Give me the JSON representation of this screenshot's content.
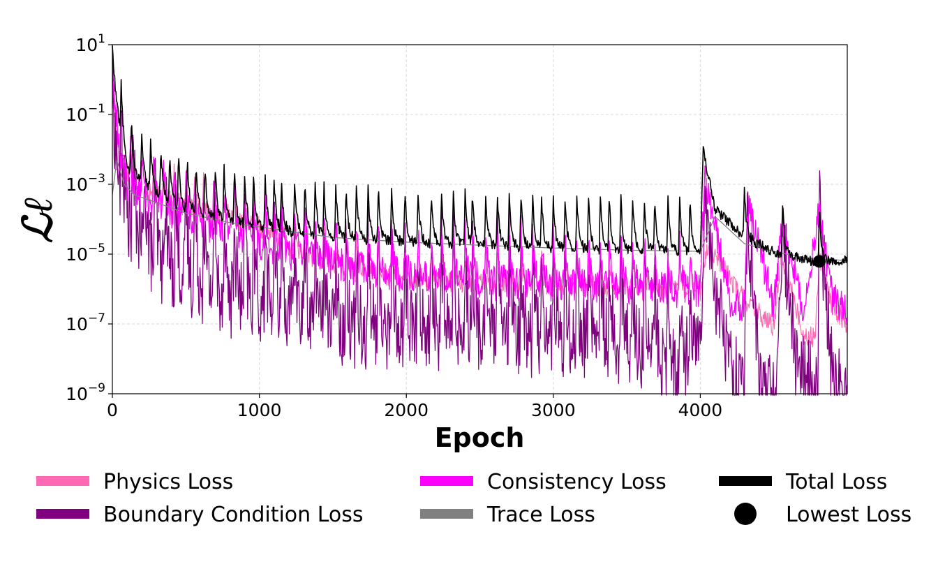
{
  "chart_data": {
    "type": "line",
    "xlabel": "Epoch",
    "ylabel": "ℒℓ",
    "yscale": "log",
    "xlim": [
      0,
      5000
    ],
    "ylim": [
      1e-09,
      10
    ],
    "grid": true,
    "x_ticks": [
      {
        "value": 0,
        "label": "0"
      },
      {
        "value": 1000,
        "label": "1000"
      },
      {
        "value": 2000,
        "label": "2000"
      },
      {
        "value": 3000,
        "label": "3000"
      },
      {
        "value": 4000,
        "label": "4000"
      }
    ],
    "y_ticks": [
      {
        "value": 10,
        "base": "10",
        "exp": "1"
      },
      {
        "value": 0.1,
        "base": "10",
        "exp": "−1"
      },
      {
        "value": 0.001,
        "base": "10",
        "exp": "−3"
      },
      {
        "value": 1e-05,
        "base": "10",
        "exp": "−5"
      },
      {
        "value": 1e-07,
        "base": "10",
        "exp": "−7"
      },
      {
        "value": 1e-09,
        "base": "10",
        "exp": "−9"
      }
    ],
    "series": [
      {
        "name": "Physics Loss",
        "color": "#ff69b4",
        "width": 1.2,
        "points": [
          [
            0,
            0.3
          ],
          [
            50,
            0.005
          ],
          [
            100,
            0.002
          ],
          [
            200,
            0.0007
          ],
          [
            300,
            0.0004
          ],
          [
            500,
            0.0002
          ],
          [
            700,
            0.00012
          ],
          [
            1000,
            5e-05
          ],
          [
            1200,
            1.5e-05
          ],
          [
            1500,
            4e-06
          ],
          [
            1800,
            2.5e-06
          ],
          [
            2000,
            1.8e-06
          ],
          [
            2200,
            1.6e-06
          ],
          [
            2500,
            1.4e-06
          ],
          [
            3000,
            1.2e-06
          ],
          [
            3500,
            1e-06
          ],
          [
            4000,
            8e-07
          ],
          [
            4050,
            2e-05
          ],
          [
            4200,
            2e-06
          ],
          [
            4300,
            5e-07
          ],
          [
            4500,
            8e-08
          ],
          [
            4550,
            1e-05
          ],
          [
            4700,
            5e-08
          ],
          [
            4780,
            4e-08
          ],
          [
            4810,
            1e-05
          ],
          [
            4900,
            3e-07
          ],
          [
            5000,
            1e-07
          ]
        ],
        "spikes": [
          120,
          200,
          280,
          350,
          420,
          500,
          560,
          620,
          690,
          760,
          830,
          900,
          960,
          1040,
          1100,
          1150,
          1240,
          1310,
          1380,
          1440,
          1520,
          1590,
          1660,
          1740,
          1810,
          1900,
          1990,
          2080,
          2170,
          2240,
          2320,
          2400,
          2450,
          2540,
          2620,
          2700,
          2780,
          2860,
          2920,
          3000,
          3080,
          3160,
          3240,
          3320,
          3380,
          3460,
          3540,
          3620,
          3690,
          3780,
          3860,
          3930
        ],
        "spike_factor": 8,
        "jitter": 0.3
      },
      {
        "name": "Boundary Condition Loss",
        "color": "#800080",
        "width": 1.3,
        "points": [
          [
            0,
            0.5
          ],
          [
            20,
            0.02
          ],
          [
            60,
            0.0003
          ],
          [
            150,
            5e-05
          ],
          [
            300,
            5e-06
          ],
          [
            500,
            2e-06
          ],
          [
            800,
            5e-07
          ],
          [
            1000,
            3e-07
          ],
          [
            1500,
            8e-08
          ],
          [
            2000,
            6e-08
          ],
          [
            2500,
            5e-08
          ],
          [
            3000,
            4e-08
          ],
          [
            3500,
            3e-08
          ],
          [
            3800,
            4e-09
          ],
          [
            3900,
            8e-09
          ],
          [
            4000,
            3e-08
          ],
          [
            4030,
            0.001
          ],
          [
            4100,
            1e-06
          ],
          [
            4200,
            1e-08
          ],
          [
            4300,
            1e-09
          ],
          [
            4320,
            0.0002
          ],
          [
            4400,
            3e-09
          ],
          [
            4520,
            1e-09
          ],
          [
            4560,
            5e-05
          ],
          [
            4650,
            1e-08
          ],
          [
            4800,
            1e-09
          ],
          [
            4810,
            0.0002
          ],
          [
            4900,
            2e-09
          ],
          [
            4990,
            1e-09
          ]
        ],
        "spikes": [
          60,
          140,
          220,
          290,
          360,
          430,
          500,
          560,
          620,
          690,
          760,
          830,
          900,
          960,
          1040,
          1100,
          1150,
          1240,
          1310,
          1380,
          1440,
          1520,
          1590,
          1660,
          1740,
          1810,
          1900,
          1990,
          2080,
          2170,
          2240,
          2320,
          2400,
          2450,
          2540,
          2620,
          2700,
          2780,
          2860,
          2920,
          3000,
          3080,
          3160,
          3240,
          3320,
          3380,
          3460,
          3540,
          3620,
          3690,
          3780,
          3860,
          3930
        ],
        "spike_factor": 400,
        "jitter": 1.2
      },
      {
        "name": "Consistency Loss",
        "color": "#ff00ff",
        "width": 1.3,
        "points": [
          [
            0,
            1.0
          ],
          [
            50,
            0.01
          ],
          [
            100,
            0.001
          ],
          [
            200,
            0.0004
          ],
          [
            400,
            0.00015
          ],
          [
            700,
            5e-05
          ],
          [
            1000,
            2e-05
          ],
          [
            1300,
            8e-06
          ],
          [
            1600,
            4e-06
          ],
          [
            2000,
            2e-06
          ],
          [
            2500,
            1.5e-06
          ],
          [
            3000,
            1.2e-06
          ],
          [
            3500,
            1e-06
          ],
          [
            4000,
            8e-07
          ],
          [
            4030,
            0.002
          ],
          [
            4200,
            5e-07
          ],
          [
            4300,
            3e-07
          ],
          [
            4320,
            0.0003
          ],
          [
            4500,
            3e-07
          ],
          [
            4560,
            8e-05
          ],
          [
            4700,
            3e-07
          ],
          [
            4810,
            0.0002
          ],
          [
            4900,
            5e-07
          ],
          [
            5000,
            3e-07
          ]
        ],
        "spikes": [
          120,
          200,
          280,
          350,
          420,
          500,
          560,
          620,
          690,
          760,
          830,
          900,
          960,
          1040,
          1100,
          1150,
          1240,
          1310,
          1380,
          1440,
          1520,
          1590,
          1660,
          1740,
          1810,
          1900,
          1990,
          2080,
          2170,
          2240,
          2320,
          2400,
          2450,
          2540,
          2620,
          2700,
          2780,
          2860,
          2920,
          3000,
          3080,
          3160,
          3240,
          3320,
          3380,
          3460,
          3540,
          3620,
          3690,
          3780,
          3860,
          3930
        ],
        "spike_factor": 20,
        "jitter": 0.5
      },
      {
        "name": "Trace Loss",
        "color": "#808080",
        "width": 1.3,
        "points": [
          [
            0,
            0.0005
          ],
          [
            30,
            0.005
          ],
          [
            80,
            0.001
          ],
          [
            150,
            0.0005
          ],
          [
            300,
            0.0003
          ],
          [
            500,
            0.00015
          ],
          [
            800,
            8e-05
          ],
          [
            1000,
            6e-05
          ],
          [
            1500,
            3e-05
          ],
          [
            2000,
            2.2e-05
          ],
          [
            2500,
            1.8e-05
          ],
          [
            3000,
            1.5e-05
          ],
          [
            3500,
            1.3e-05
          ],
          [
            4000,
            1.2e-05
          ],
          [
            4100,
            0.00012
          ],
          [
            4300,
            2e-05
          ],
          [
            4500,
            1.2e-05
          ],
          [
            4700,
            8e-06
          ],
          [
            5000,
            6.5e-06
          ]
        ],
        "spikes": [],
        "spike_factor": 1,
        "jitter": 0
      },
      {
        "name": "Total Loss",
        "color": "#000000",
        "width": 1.6,
        "points": [
          [
            0,
            10
          ],
          [
            20,
            0.5
          ],
          [
            50,
            0.05
          ],
          [
            100,
            0.003
          ],
          [
            200,
            0.0012
          ],
          [
            300,
            0.0005
          ],
          [
            400,
            0.0003
          ],
          [
            500,
            0.00018
          ],
          [
            700,
            0.0001
          ],
          [
            1000,
            6e-05
          ],
          [
            1500,
            3e-05
          ],
          [
            2000,
            2.2e-05
          ],
          [
            2500,
            1.8e-05
          ],
          [
            3000,
            1.5e-05
          ],
          [
            3500,
            1.3e-05
          ],
          [
            4000,
            1.2e-05
          ],
          [
            4020,
            0.01
          ],
          [
            4100,
            0.0002
          ],
          [
            4300,
            3e-05
          ],
          [
            4500,
            1.2e-05
          ],
          [
            4700,
            7e-06
          ],
          [
            4800,
            6e-06
          ],
          [
            5000,
            6.5e-06
          ]
        ],
        "spikes": [
          60,
          130,
          200,
          260,
          330,
          390,
          450,
          510,
          570,
          630,
          700,
          760,
          830,
          900,
          960,
          1040,
          1100,
          1150,
          1240,
          1310,
          1380,
          1440,
          1520,
          1590,
          1660,
          1740,
          1810,
          1900,
          1990,
          2080,
          2170,
          2240,
          2320,
          2400,
          2450,
          2540,
          2620,
          2700,
          2780,
          2860,
          2920,
          3000,
          3080,
          3160,
          3240,
          3320,
          3380,
          3460,
          3540,
          3620,
          3690,
          3780,
          3860,
          3930,
          4300,
          4560,
          4810
        ],
        "spike_factor": 30,
        "jitter": 0.15
      }
    ],
    "markers": [
      {
        "name": "Lowest Loss",
        "x": 4810,
        "y": 6.2e-06,
        "color": "#000000"
      }
    ],
    "legend": [
      {
        "label": "Physics Loss",
        "color": "#ff69b4",
        "kind": "line"
      },
      {
        "label": "Boundary Condition Loss",
        "color": "#800080",
        "kind": "line"
      },
      {
        "label": "Consistency Loss",
        "color": "#ff00ff",
        "kind": "line"
      },
      {
        "label": "Trace Loss",
        "color": "#808080",
        "kind": "line"
      },
      {
        "label": "Total Loss",
        "color": "#000000",
        "kind": "line"
      },
      {
        "label": "Lowest Loss",
        "color": "#000000",
        "kind": "marker"
      }
    ],
    "legend_position": "below-plot"
  }
}
